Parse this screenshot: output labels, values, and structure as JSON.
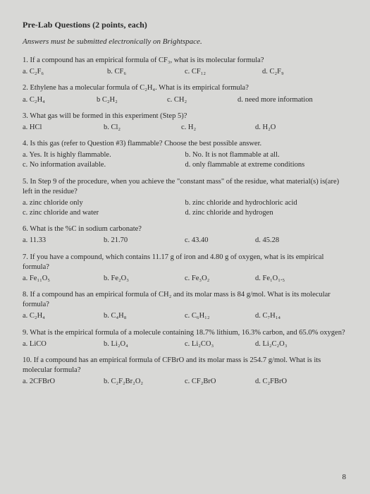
{
  "title": "Pre-Lab Questions (2 points, each)",
  "subtitle": "Answers must be submitted electronically on Brightspace.",
  "page_number": "8",
  "questions": [
    {
      "text": "1. If a compound has an empirical formula of CF₃, what is its molecular formula?",
      "opts": [
        "a. C₂F₆",
        "b. CF₆",
        "c. CF₁₂",
        "d. C₂F₉"
      ],
      "widths": [
        120,
        110,
        110,
        90
      ]
    },
    {
      "text": "2. Ethylene has a molecular formula of C₂H₄.  What is its empirical formula?",
      "opts": [
        "a. C₂H₄",
        "b C₂H₂",
        "c. CH₂",
        "d. need more information"
      ],
      "widths": [
        105,
        100,
        100,
        150
      ]
    },
    {
      "text": "3. What gas will be formed in this experiment (Step 5)?",
      "opts": [
        "a. HCl",
        "b. Cl₂",
        "c. H₂",
        "d. H₂O"
      ],
      "widths": [
        115,
        110,
        105,
        90
      ]
    },
    {
      "text": "4. Is this gas (refer to Question #3) flammable?  Choose the best possible answer.",
      "two_col": true,
      "opts": [
        "a. Yes.  It is highly flammable.",
        "b. No.  It is not flammable at all.",
        "c. No information available.",
        "d. only flammable at extreme conditions"
      ]
    },
    {
      "text": "5. In Step 9 of the procedure, when you achieve the \"constant mass\" of the residue, what material(s) is(are) left in the residue?",
      "two_col": true,
      "opts": [
        "a. zinc chloride only",
        "b. zinc chloride and hydrochloric acid",
        "c. zinc chloride and water",
        "d. zinc chloride and hydrogen"
      ]
    },
    {
      "text": "6. What is the %C in sodium carbonate?",
      "opts": [
        "a. 11.33",
        "b. 21.70",
        "c. 43.40",
        "d. 45.28"
      ],
      "widths": [
        115,
        115,
        100,
        90
      ]
    },
    {
      "text": "7. If you have a compound, which contains 11.17 g of iron and 4.80 g of oxygen, what is its empirical formula?",
      "opts": [
        "a. Fe₁₁O₅",
        "b. Fe₂O₃",
        "c. Fe₃O₂",
        "d. Fe₁O₁.₅"
      ],
      "widths": [
        115,
        115,
        100,
        90
      ]
    },
    {
      "text": "8. If a compound has an empirical formula of CH₂ and its molar mass is 84 g/mol.  What is its molecular formula?",
      "opts": [
        "a. C₂H₄",
        "b. C₄H₈",
        "c. C₆H₁₂",
        "d. C₇H₁₄"
      ],
      "widths": [
        115,
        115,
        100,
        90
      ]
    },
    {
      "text": "9. What is the empirical formula of a molecule containing 18.7% lithium, 16.3% carbon, and 65.0% oxygen?",
      "opts": [
        "a. LiCO",
        "b. Li₂O₄",
        "c. Li₂CO₃",
        "d. Li₂C₂O₃"
      ],
      "widths": [
        115,
        115,
        100,
        90
      ]
    },
    {
      "text": "10. If a compound has an empirical formula of CFBrO and its molar mass is 254.7 g/mol.  What is its molecular formula?",
      "opts": [
        "a. 2CFBrO",
        "b. C₂F₂Br₂O₂",
        "c. CF₂BrO",
        "d. C₂FBrO"
      ],
      "widths": [
        115,
        115,
        100,
        90
      ]
    }
  ]
}
